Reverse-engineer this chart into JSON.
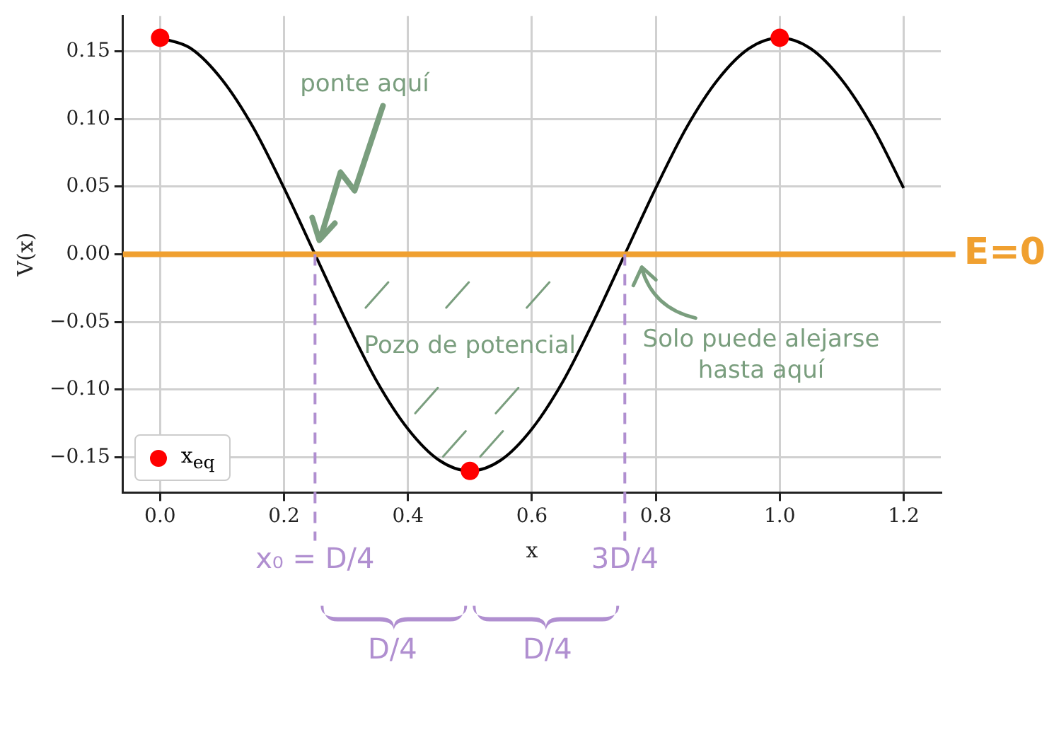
{
  "chart_data": {
    "type": "line",
    "xlabel": "x",
    "ylabel": "V(x)",
    "xlim": [
      -0.06,
      1.26
    ],
    "ylim": [
      -0.176,
      0.176
    ],
    "xticks": [
      {
        "value": 0,
        "label": "0.0"
      },
      0.2,
      0.4,
      0.6,
      0.8,
      {
        "value": 1,
        "label": "1.0"
      },
      1.2
    ],
    "yticks": [
      {
        "value": -0.15,
        "label": "−0.15"
      },
      {
        "value": -0.1,
        "label": "−0.10"
      },
      {
        "value": -0.05,
        "label": "−0.05"
      },
      {
        "value": 0,
        "label": "0.00"
      },
      0.05,
      {
        "value": 0.1,
        "label": "0.10"
      },
      0.15
    ],
    "grid": true,
    "legend": "bottom left",
    "series": [
      {
        "color": "#000000",
        "marker": "none",
        "x": [
          0,
          0.05,
          0.1,
          0.15,
          0.2,
          0.25,
          0.3,
          0.35,
          0.4,
          0.45,
          0.5,
          0.55,
          0.6,
          0.65,
          0.7,
          0.75,
          0.8,
          0.85,
          0.9,
          0.95,
          1,
          1.05,
          1.1,
          1.15,
          1.2
        ],
        "values": [
          0.16,
          0.152,
          0.129,
          0.094,
          0.049,
          0,
          -0.049,
          -0.094,
          -0.129,
          -0.152,
          -0.16,
          -0.152,
          -0.129,
          -0.094,
          -0.049,
          0,
          0.049,
          0.094,
          0.129,
          0.152,
          0.16,
          0.152,
          0.129,
          0.094,
          0.049
        ]
      },
      {
        "type": "scatter",
        "name": "x$_{eq}$",
        "color": "#ff0000",
        "marker": "circle",
        "x": [
          0,
          0.5,
          1
        ],
        "values": [
          0.16,
          -0.16,
          0.16
        ]
      }
    ],
    "ref_lines": [
      {
        "axis": "y",
        "value": 0,
        "label": "E=0",
        "color": "#f0a030",
        "line_style": "solid"
      },
      {
        "axis": "x",
        "value": 0.25,
        "label": "x₀ = D/4",
        "color": "#b08fd0",
        "line_style": "dashed"
      },
      {
        "axis": "x",
        "value": 0.75,
        "label": "3D/4",
        "color": "#b08fd0",
        "line_style": "dashed"
      }
    ],
    "annotations": [
      "ponte aquí",
      "Pozo de potencial",
      "Solo puede alejarse hasta aquí",
      "D/4",
      "D/4"
    ]
  }
}
